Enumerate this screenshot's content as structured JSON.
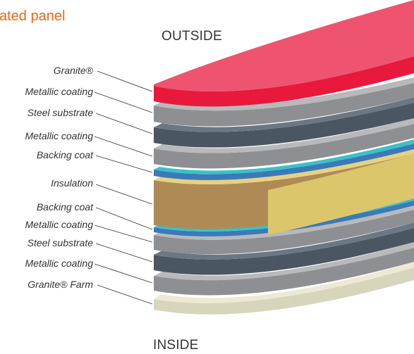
{
  "title": "ated panel",
  "outside_label": "OUTSIDE",
  "inside_label": "INSIDE",
  "layers": [
    {
      "label": "Granite®",
      "color": "#e8193c"
    },
    {
      "label": "Metallic coating",
      "color": "#9a9b9d"
    },
    {
      "label": "Steel substrate",
      "color": "#4e5b66"
    },
    {
      "label": "Metallic coating",
      "color": "#9a9b9d"
    },
    {
      "label": "Backing coat",
      "color": "#2eb8bf"
    },
    {
      "label": "Insulation",
      "color": "#d4be6a"
    },
    {
      "label": "Backing coat",
      "color": "#2eb8bf"
    },
    {
      "label": "Metallic coating",
      "color": "#9a9b9d"
    },
    {
      "label": "Steel substrate",
      "color": "#4e5b66"
    },
    {
      "label": "Metallic coating",
      "color": "#9a9b9d"
    },
    {
      "label": "Granite® Farm",
      "color": "#e6e3cc"
    }
  ]
}
